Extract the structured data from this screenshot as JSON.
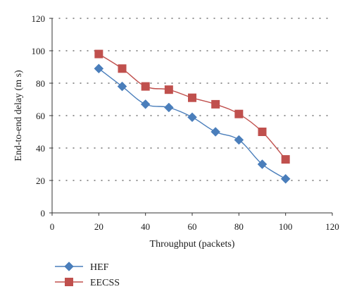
{
  "chart_data": {
    "type": "line",
    "xlabel": "Throughput (packets)",
    "ylabel": "End-to-end delay (m s)",
    "xlim": [
      0,
      120
    ],
    "ylim": [
      0,
      120
    ],
    "xticks": [
      0,
      20,
      40,
      60,
      80,
      100,
      120
    ],
    "yticks": [
      0,
      20,
      40,
      60,
      80,
      100,
      120
    ],
    "grid": "horizontal dotted",
    "legend_position": "bottom-left",
    "x": [
      20,
      30,
      40,
      50,
      60,
      70,
      80,
      90,
      100
    ],
    "series": [
      {
        "name": "HEF",
        "marker": "diamond",
        "color": "#4a7ebb",
        "values": [
          89,
          78,
          67,
          65,
          59,
          50,
          45,
          30,
          21
        ]
      },
      {
        "name": "EECSS",
        "marker": "square",
        "color": "#c0504d",
        "values": [
          98,
          89,
          78,
          76,
          71,
          67,
          61,
          50,
          33
        ]
      }
    ]
  }
}
